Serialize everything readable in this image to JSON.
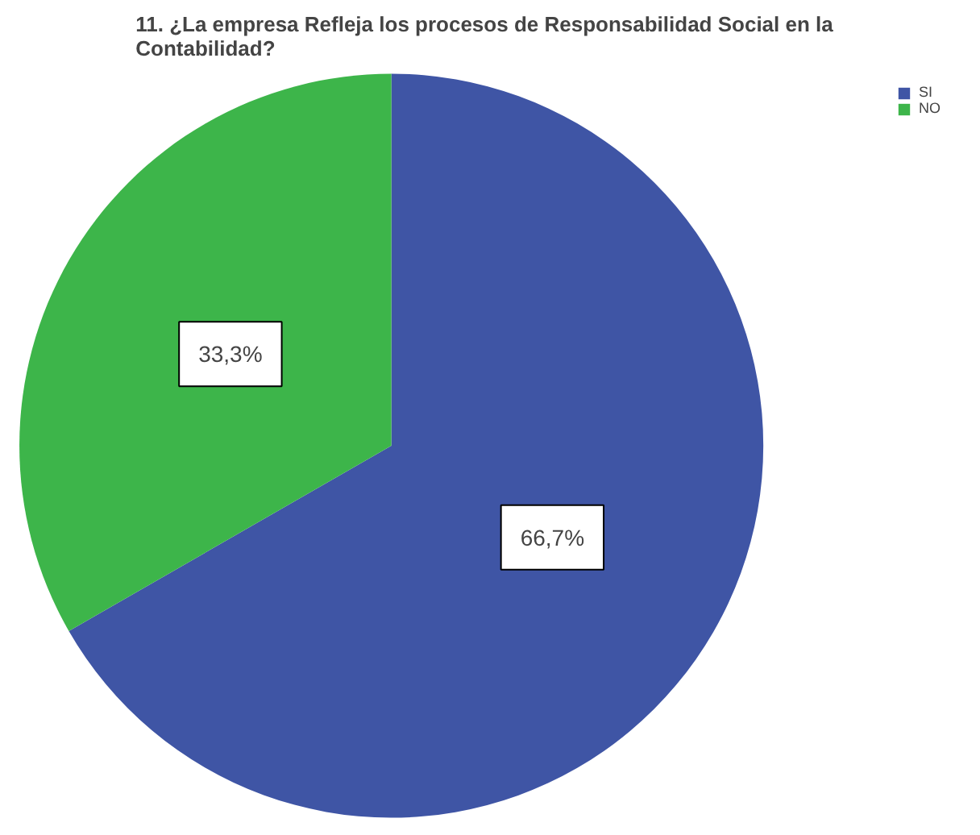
{
  "chart_data": {
    "type": "pie",
    "title": "11. ¿La empresa Refleja los procesos de Responsabilidad Social en la Contabilidad?",
    "categories": [
      "SI",
      "NO"
    ],
    "values": [
      66.7,
      33.3
    ],
    "colors": [
      "#3f55a5",
      "#3db54a"
    ],
    "value_labels": [
      "66,7%",
      "33,3%"
    ],
    "legend": "top right"
  }
}
